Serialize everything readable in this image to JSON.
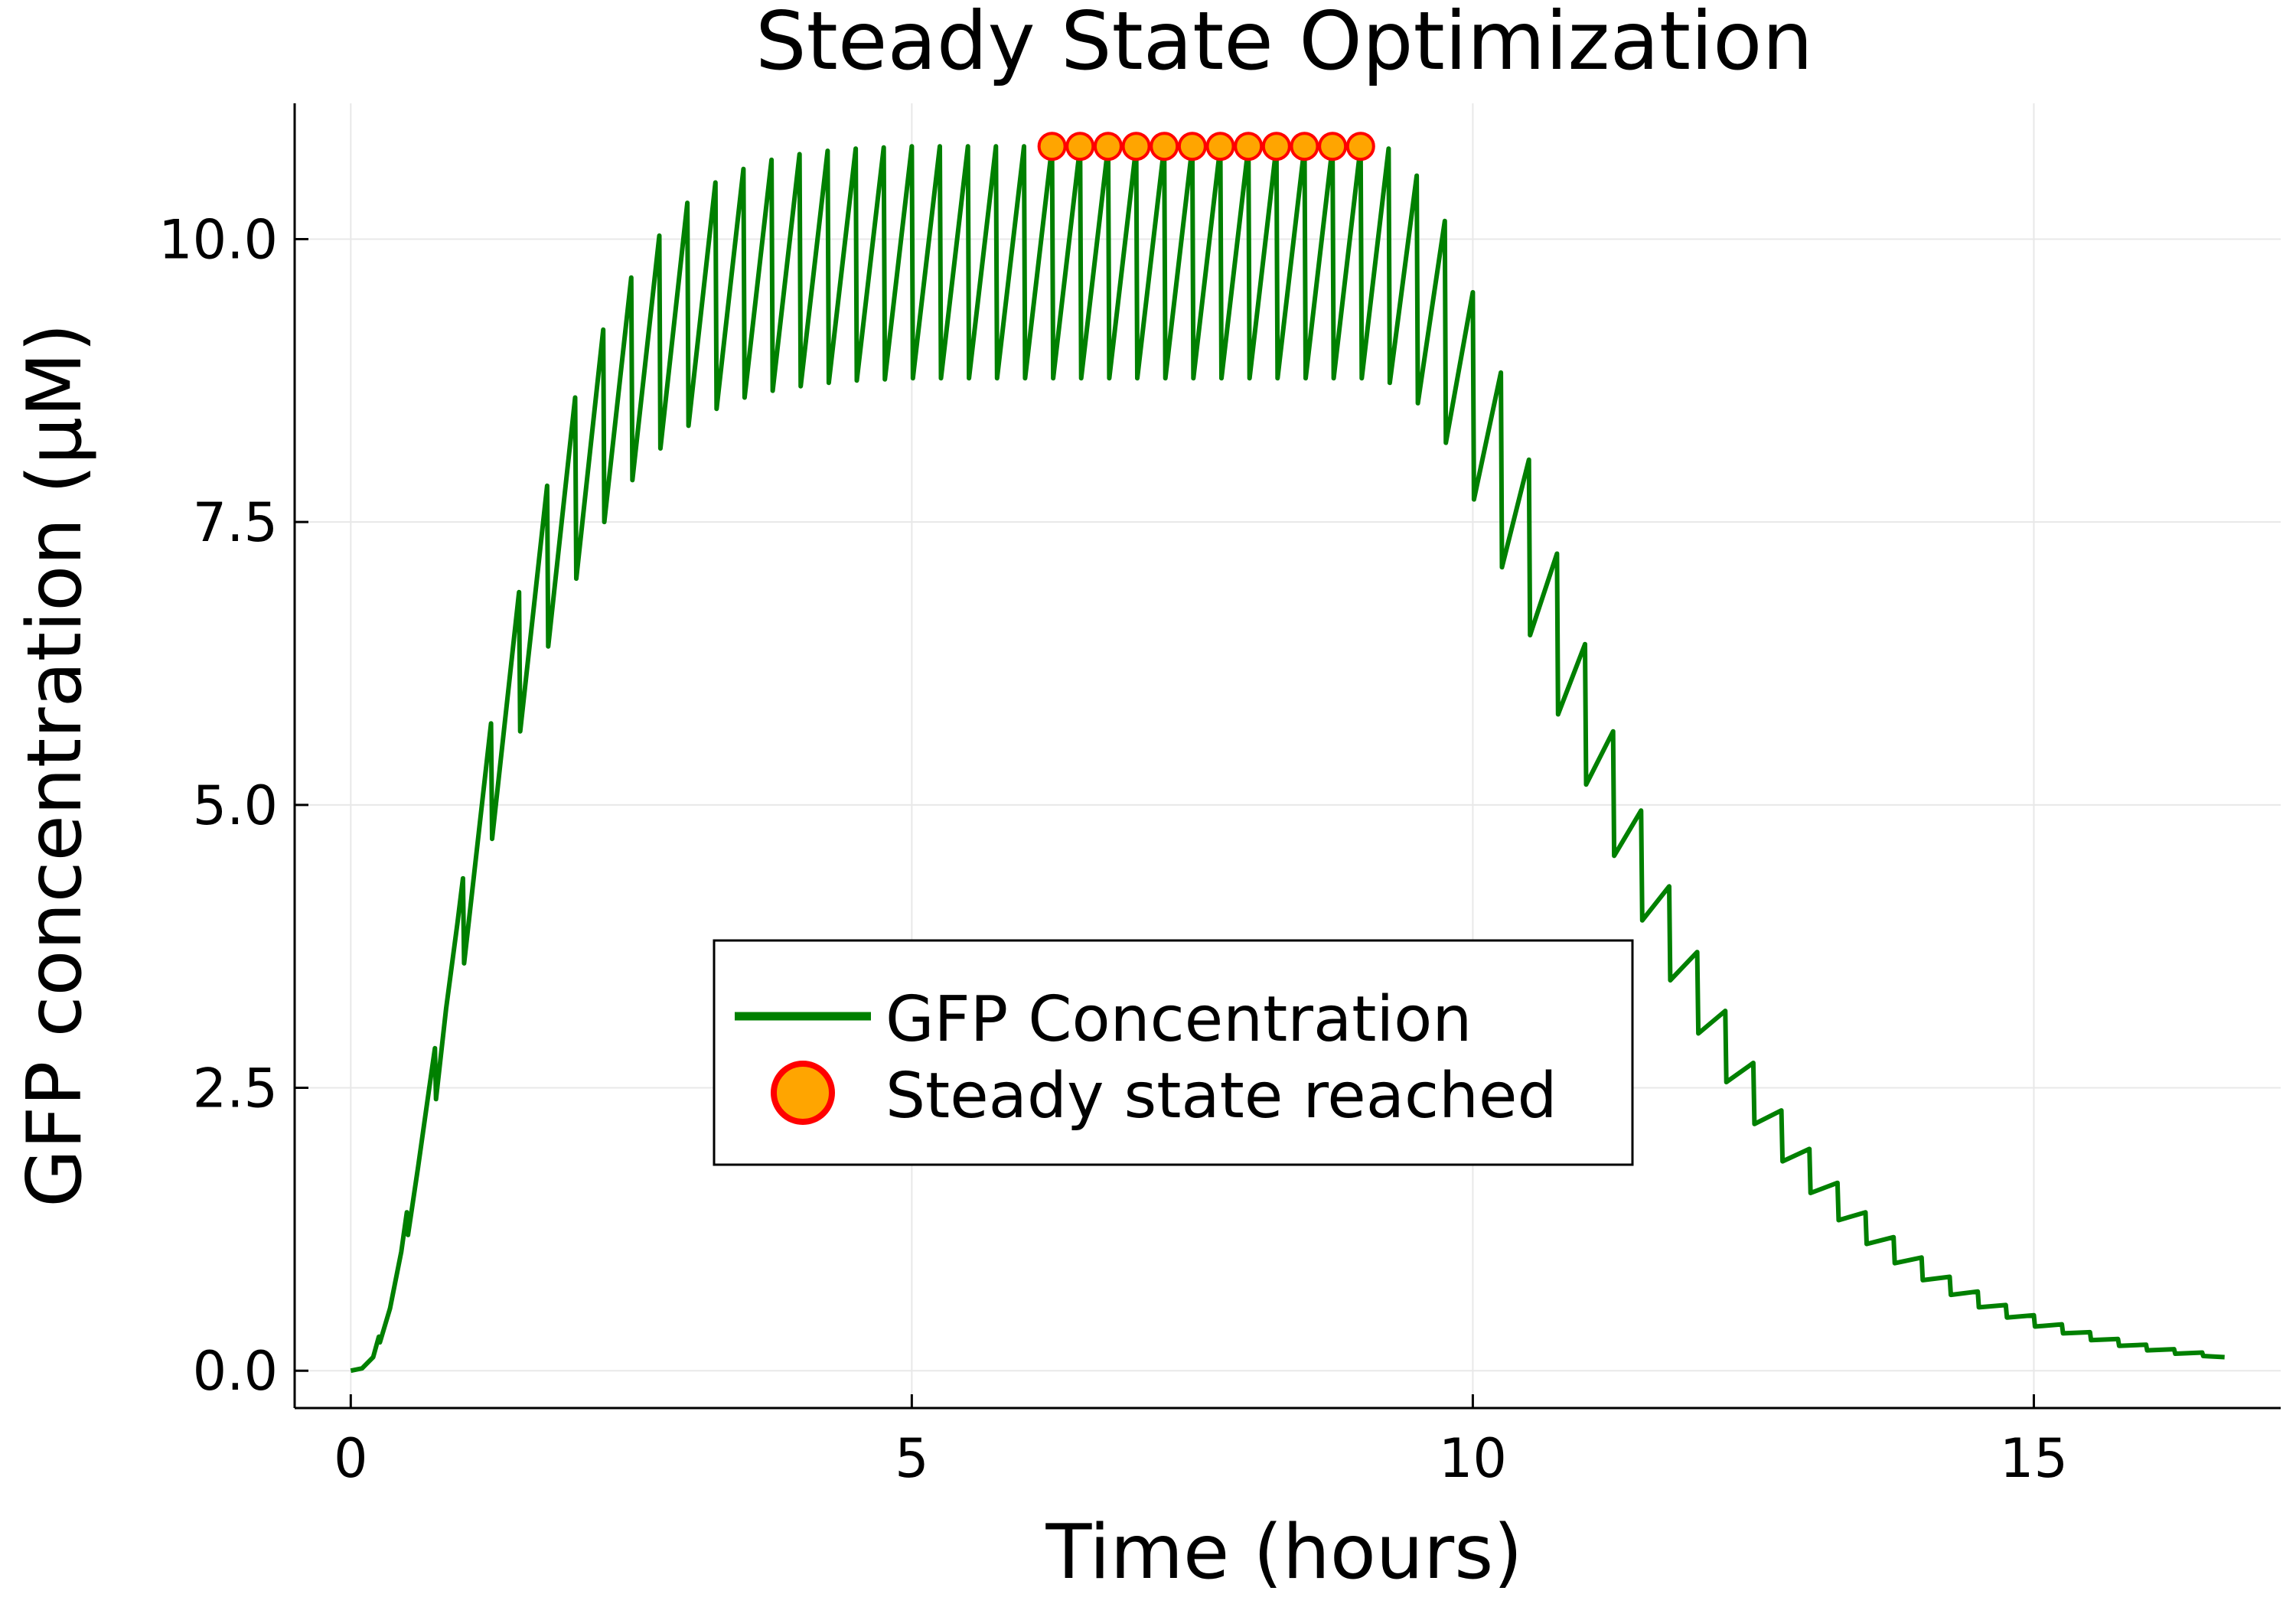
{
  "chart_data": {
    "type": "line",
    "title": "Steady State Optimization",
    "xlabel": "Time (hours)",
    "ylabel": "GFP concentration (μM)",
    "xlim": [
      -0.5,
      17.2
    ],
    "ylim": [
      -0.33,
      11.2
    ],
    "xticks": [
      0,
      5,
      10,
      15
    ],
    "xtick_labels": [
      "0",
      "5",
      "10",
      "15"
    ],
    "yticks": [
      0,
      2.5,
      5,
      7.5,
      10
    ],
    "ytick_labels": [
      "0.0",
      "2.5",
      "5.0",
      "7.5",
      "10.0"
    ],
    "grid": true,
    "legend_position": "center",
    "series": [
      {
        "name": "GFP Concentration",
        "kind": "line",
        "color": "#008000",
        "x": [
          0,
          0.1,
          0.2,
          0.25,
          0.26,
          0.35,
          0.45,
          0.5,
          0.51,
          0.6,
          0.7,
          0.75,
          0.76,
          0.85,
          0.95,
          1.0,
          1.01,
          1.25,
          1.26,
          1.5,
          1.51,
          1.75,
          1.76,
          2.0,
          2.01,
          2.25,
          2.26,
          2.5,
          2.51,
          2.75,
          2.76,
          3.0,
          3.01,
          3.25,
          3.26,
          3.5,
          3.51,
          3.75,
          3.76,
          4.0,
          4.01,
          4.25,
          4.26,
          4.5,
          4.51,
          4.75,
          4.76,
          5.0,
          5.01,
          5.25,
          5.26,
          5.5,
          5.51,
          5.75,
          5.76,
          6.0,
          6.01,
          6.25,
          6.26,
          6.5,
          6.51,
          6.75,
          6.76,
          7.0,
          7.01,
          7.25,
          7.26,
          7.5,
          7.51,
          7.75,
          7.76,
          8.0,
          8.01,
          8.25,
          8.26,
          8.5,
          8.51,
          8.75,
          8.76,
          9.0,
          9.01,
          9.25,
          9.26,
          9.5,
          9.51,
          9.75,
          9.76,
          10.0,
          10.01,
          10.25,
          10.26,
          10.5,
          10.51,
          10.75,
          10.76,
          11.0,
          11.01,
          11.25,
          11.26,
          11.5,
          11.51,
          11.75,
          11.76,
          12.0,
          12.01,
          12.25,
          12.26,
          12.5,
          12.51,
          12.75,
          12.76,
          13.0,
          13.01,
          13.25,
          13.26,
          13.5,
          13.51,
          13.75,
          13.76,
          14.0,
          14.01,
          14.25,
          14.26,
          14.5,
          14.51,
          14.75,
          14.76,
          15.0,
          15.01,
          15.25,
          15.26,
          15.5,
          15.51,
          15.75,
          15.76,
          16.0,
          16.01,
          16.25,
          16.26,
          16.5,
          16.51,
          16.7
        ],
        "y": [
          0,
          0.02,
          0.12,
          0.3,
          0.25,
          0.55,
          1.05,
          1.4,
          1.2,
          1.8,
          2.5,
          2.85,
          2.4,
          3.2,
          3.95,
          4.35,
          3.6,
          5.72,
          4.7,
          6.88,
          5.65,
          7.82,
          6.4,
          8.6,
          7.0,
          9.2,
          7.5,
          9.66,
          7.87,
          10.03,
          8.15,
          10.32,
          8.35,
          10.5,
          8.5,
          10.62,
          8.6,
          10.7,
          8.66,
          10.75,
          8.7,
          10.78,
          8.73,
          10.8,
          8.75,
          10.81,
          8.76,
          10.82,
          8.77,
          10.82,
          8.77,
          10.82,
          8.77,
          10.82,
          8.77,
          10.82,
          8.77,
          10.82,
          8.77,
          10.82,
          8.77,
          10.82,
          8.77,
          10.82,
          8.77,
          10.82,
          8.77,
          10.82,
          8.77,
          10.82,
          8.77,
          10.82,
          8.77,
          10.82,
          8.77,
          10.82,
          8.77,
          10.82,
          8.77,
          10.82,
          8.77,
          10.8,
          8.73,
          10.56,
          8.55,
          10.16,
          8.2,
          9.53,
          7.7,
          8.82,
          7.1,
          8.05,
          6.5,
          7.22,
          5.8,
          6.42,
          5.18,
          5.65,
          4.55,
          4.95,
          3.98,
          4.28,
          3.45,
          3.7,
          2.98,
          3.18,
          2.55,
          2.72,
          2.18,
          2.3,
          1.85,
          1.96,
          1.57,
          1.66,
          1.33,
          1.4,
          1.12,
          1.18,
          0.95,
          1.0,
          0.8,
          0.83,
          0.67,
          0.7,
          0.56,
          0.58,
          0.47,
          0.49,
          0.39,
          0.41,
          0.33,
          0.34,
          0.27,
          0.28,
          0.22,
          0.23,
          0.18,
          0.19,
          0.15,
          0.16,
          0.13,
          0.12
        ]
      },
      {
        "name": "Steady state reached",
        "kind": "scatter",
        "color": "#FFA500",
        "edge_color": "#FF0000",
        "x": [
          6.25,
          6.5,
          6.75,
          7.0,
          7.25,
          7.5,
          7.75,
          8.0,
          8.25,
          8.5,
          8.75,
          9.0
        ],
        "y": [
          10.82,
          10.82,
          10.82,
          10.82,
          10.82,
          10.82,
          10.82,
          10.82,
          10.82,
          10.82,
          10.82,
          10.82
        ]
      }
    ]
  }
}
